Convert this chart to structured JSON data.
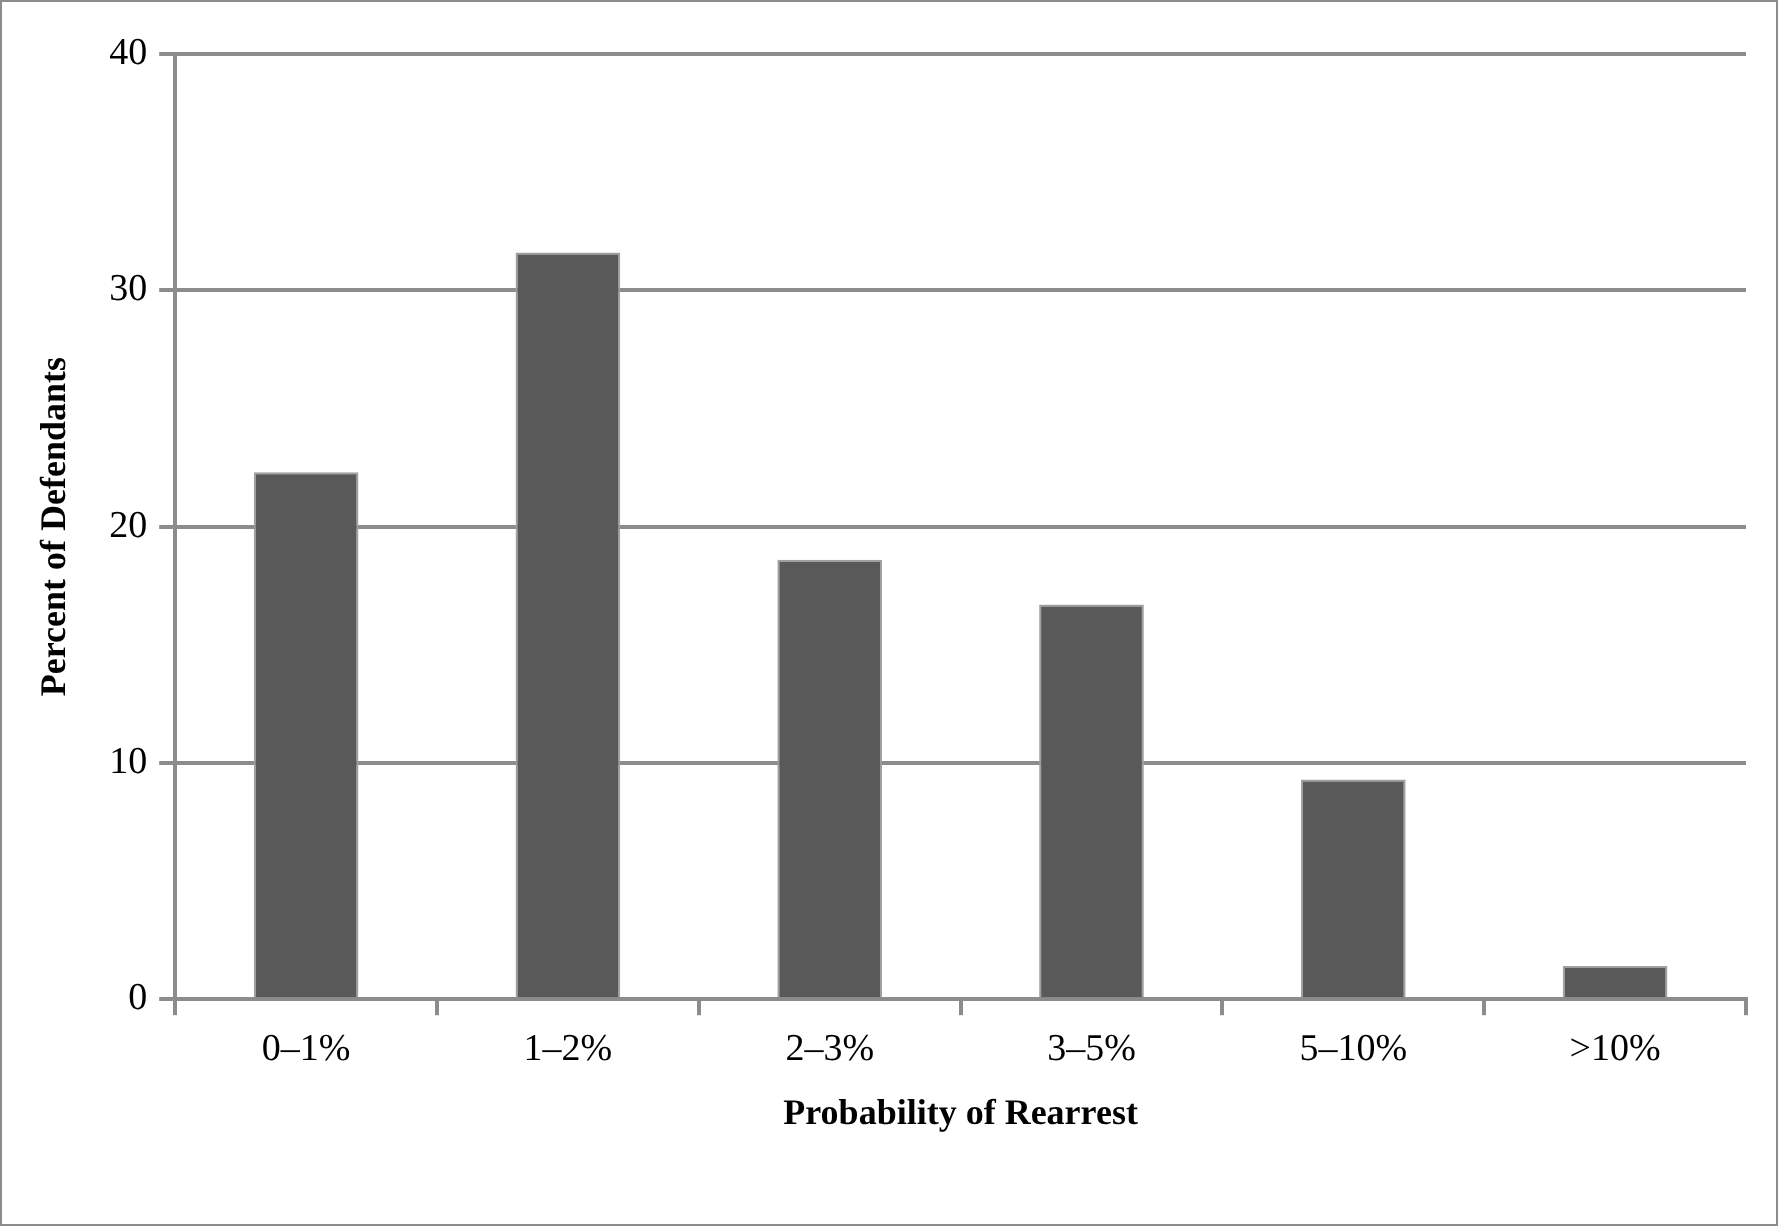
{
  "chart_data": {
    "type": "bar",
    "xlabel": "Probability of Rearrest",
    "ylabel": "Percent of Defendants",
    "categories": [
      "0–1%",
      "1–2%",
      "2–3%",
      "3–5%",
      "5–10%",
      ">10%"
    ],
    "values": [
      22.3,
      31.6,
      18.6,
      16.7,
      9.3,
      1.4
    ],
    "color": "#595959",
    "ylim": [
      0,
      40
    ],
    "yticks": [
      0,
      10,
      20,
      30,
      40
    ],
    "grid": "y",
    "legend": false
  }
}
